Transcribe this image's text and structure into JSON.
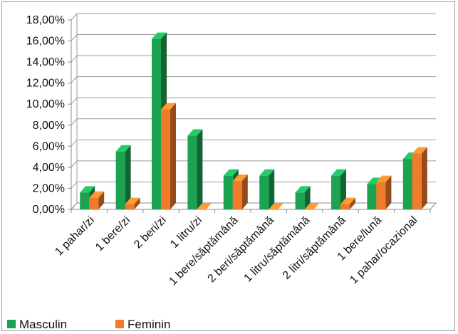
{
  "chart_data": {
    "type": "bar",
    "title": "",
    "xlabel": "",
    "ylabel": "",
    "ylim": [
      0,
      18
    ],
    "y_ticks": [
      "0,00%",
      "2,00%",
      "4,00%",
      "6,00%",
      "8,00%",
      "10,00%",
      "12,00%",
      "14,00%",
      "16,00%",
      "18,00%"
    ],
    "grid": true,
    "legend_position": "bottom-left",
    "categories": [
      "1 pahar/zi",
      "1 bere/zi",
      "2 beri/zi",
      "1 litru/zi",
      "1 bere/săptămână",
      "2 beri/săptămână",
      "1 litru/săptămână",
      "2 litri/săptămână",
      "1 bere/lună",
      "1 pahar/ocazional"
    ],
    "series": [
      {
        "name": "Masculin",
        "color": "#1ba352",
        "values": [
          1.6,
          5.5,
          16.2,
          7.0,
          3.2,
          3.2,
          1.6,
          3.2,
          2.4,
          4.8
        ]
      },
      {
        "name": "Feminin",
        "color": "#f07b2a",
        "values": [
          1.1,
          0.5,
          9.5,
          0.0,
          2.7,
          0.0,
          0.0,
          0.5,
          2.6,
          5.3
        ]
      }
    ]
  }
}
